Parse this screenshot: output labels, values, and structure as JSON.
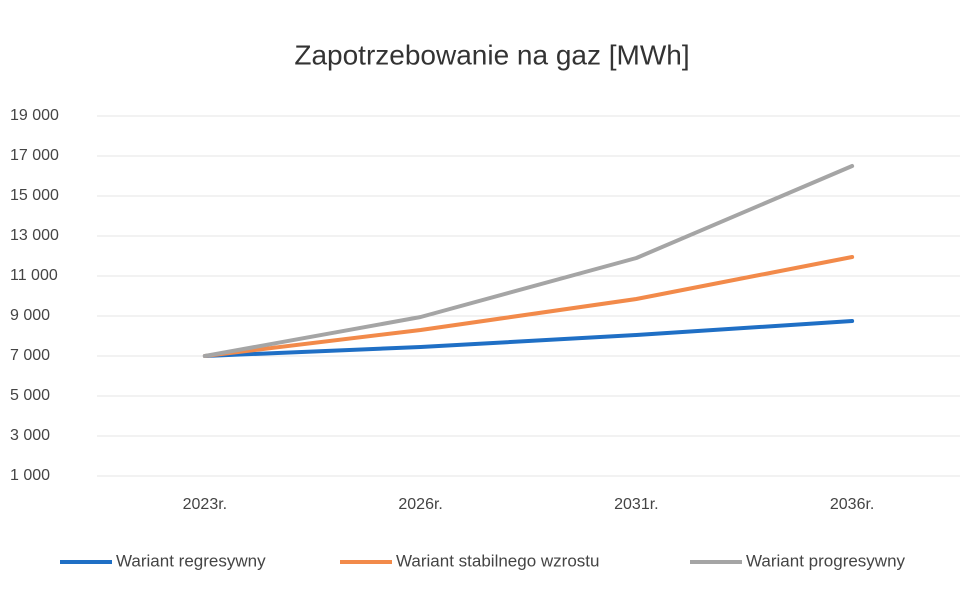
{
  "chart_data": {
    "type": "line",
    "title": "Zapotrzebowanie na gaz [MWh]",
    "categories": [
      "2023r.",
      "2026r.",
      "2031r.",
      "2036r."
    ],
    "series": [
      {
        "name": "Wariant regresywny",
        "color": "#1f6fc5",
        "values": [
          7000,
          7450,
          8050,
          8750
        ]
      },
      {
        "name": "Wariant stabilnego wzrostu",
        "color": "#f28a4a",
        "values": [
          7000,
          8300,
          9850,
          11950
        ]
      },
      {
        "name": "Wariant progresywny",
        "color": "#a5a5a5",
        "values": [
          7000,
          8950,
          11900,
          16500
        ]
      }
    ],
    "ylim": [
      1000,
      19000
    ],
    "yticks": [
      {
        "value": 1000,
        "label": "1 000"
      },
      {
        "value": 3000,
        "label": "3 000"
      },
      {
        "value": 5000,
        "label": "5 000"
      },
      {
        "value": 7000,
        "label": "7 000"
      },
      {
        "value": 9000,
        "label": "9 000"
      },
      {
        "value": 11000,
        "label": "11 000"
      },
      {
        "value": 13000,
        "label": "13 000"
      },
      {
        "value": 15000,
        "label": "15 000"
      },
      {
        "value": 17000,
        "label": "17 000"
      },
      {
        "value": 19000,
        "label": "19 000"
      }
    ],
    "grid": true,
    "legend": "bottom"
  }
}
